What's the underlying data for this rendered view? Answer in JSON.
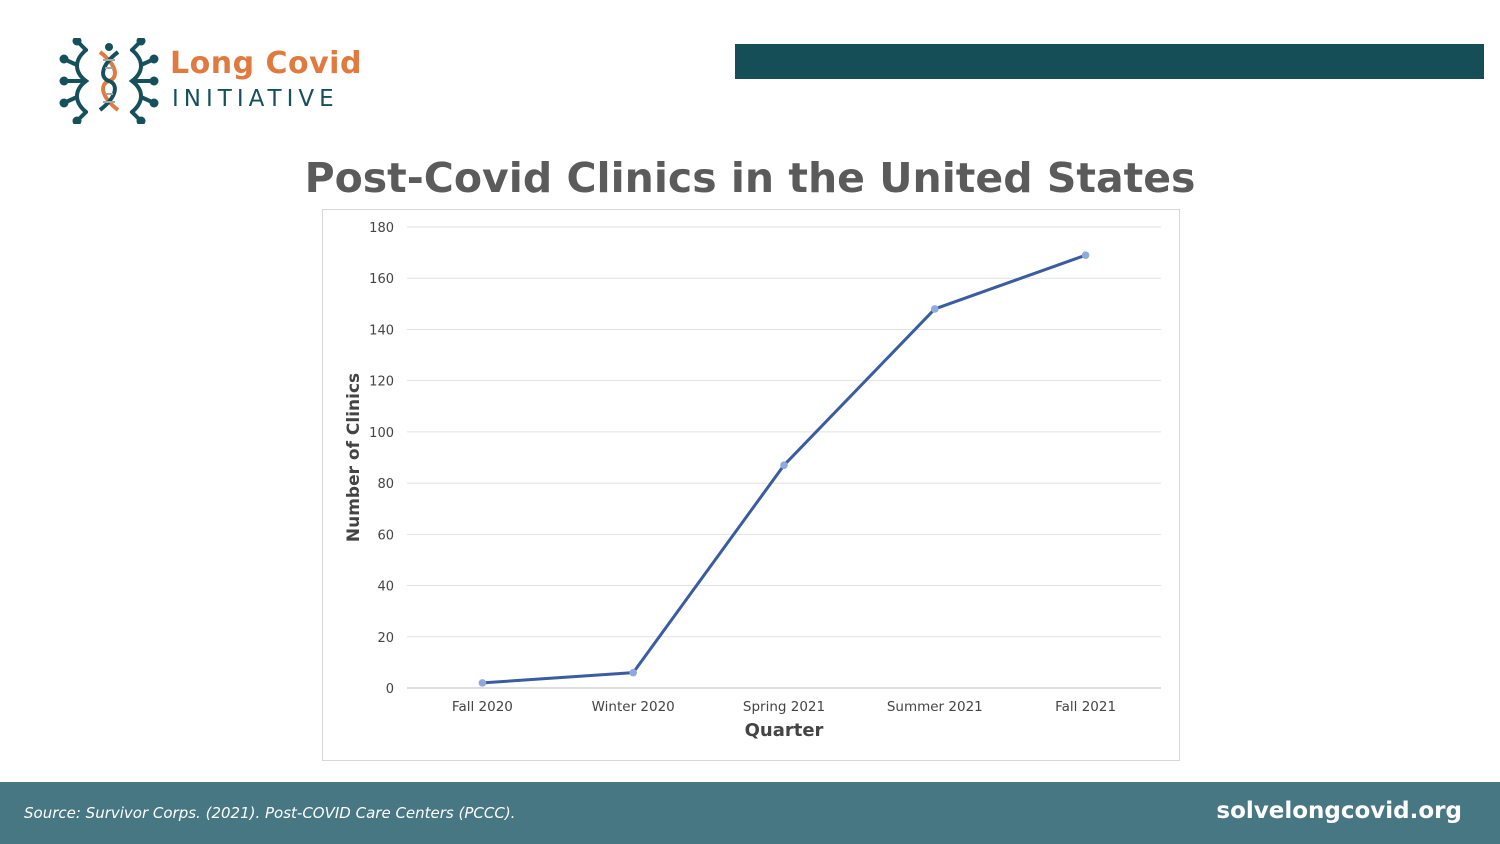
{
  "logo": {
    "line1": "Long Covid",
    "line2": "INITIATIVE"
  },
  "slide": {
    "title": "Post-Covid Clinics in the United States"
  },
  "colors": {
    "top_bar": "#164e58",
    "footer_bg": "#477783",
    "line": "#3a5ca0",
    "points": "#8fa9dc",
    "accent_orange": "#e07a3f",
    "teal": "#16505a"
  },
  "chart_data": {
    "type": "line",
    "categories": [
      "Fall 2020",
      "Winter 2020",
      "Spring 2021",
      "Summer 2021",
      "Fall 2021"
    ],
    "values": [
      2,
      6,
      87,
      148,
      169
    ],
    "xlabel": "Quarter",
    "ylabel": "Number of Clinics",
    "ylim": [
      0,
      180
    ],
    "yticks": [
      0,
      20,
      40,
      60,
      80,
      100,
      120,
      140,
      160,
      180
    ],
    "grid": true
  },
  "footer": {
    "source": "Source: Survivor Corps. (2021). Post-COVID Care Centers (PCCC).",
    "site": "solvelongcovid.org"
  }
}
